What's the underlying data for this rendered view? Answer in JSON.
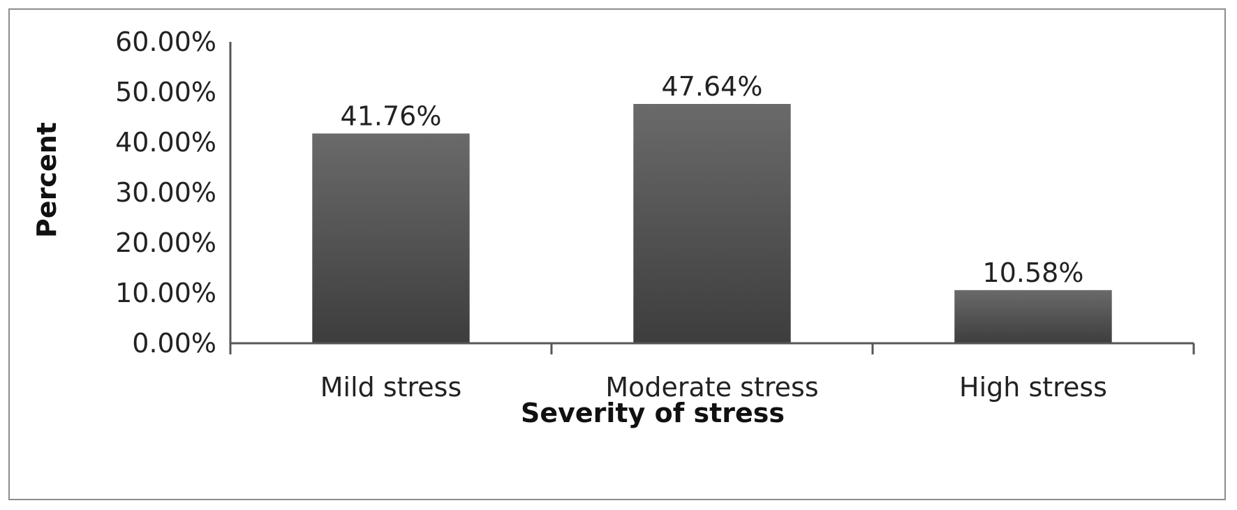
{
  "chart_data": {
    "type": "bar",
    "categories": [
      "Mild stress",
      "Moderate stress",
      "High stress"
    ],
    "values": [
      41.76,
      47.64,
      10.58
    ],
    "data_labels": [
      "41.76%",
      "47.64%",
      "10.58%"
    ],
    "title": "",
    "xlabel": "Severity of stress",
    "ylabel": "Percent",
    "ylim": [
      0,
      60
    ],
    "yticks": [
      0,
      10,
      20,
      30,
      40,
      50,
      60
    ],
    "ytick_labels": [
      "0.00%",
      "10.00%",
      "20.00%",
      "30.00%",
      "40.00%",
      "50.00%",
      "60.00%"
    ],
    "grid": false,
    "legend": "none",
    "colors": {
      "bar_dark": "#3d3d3d",
      "bar_light": "#6a6a6a",
      "axis": "#555555"
    }
  }
}
